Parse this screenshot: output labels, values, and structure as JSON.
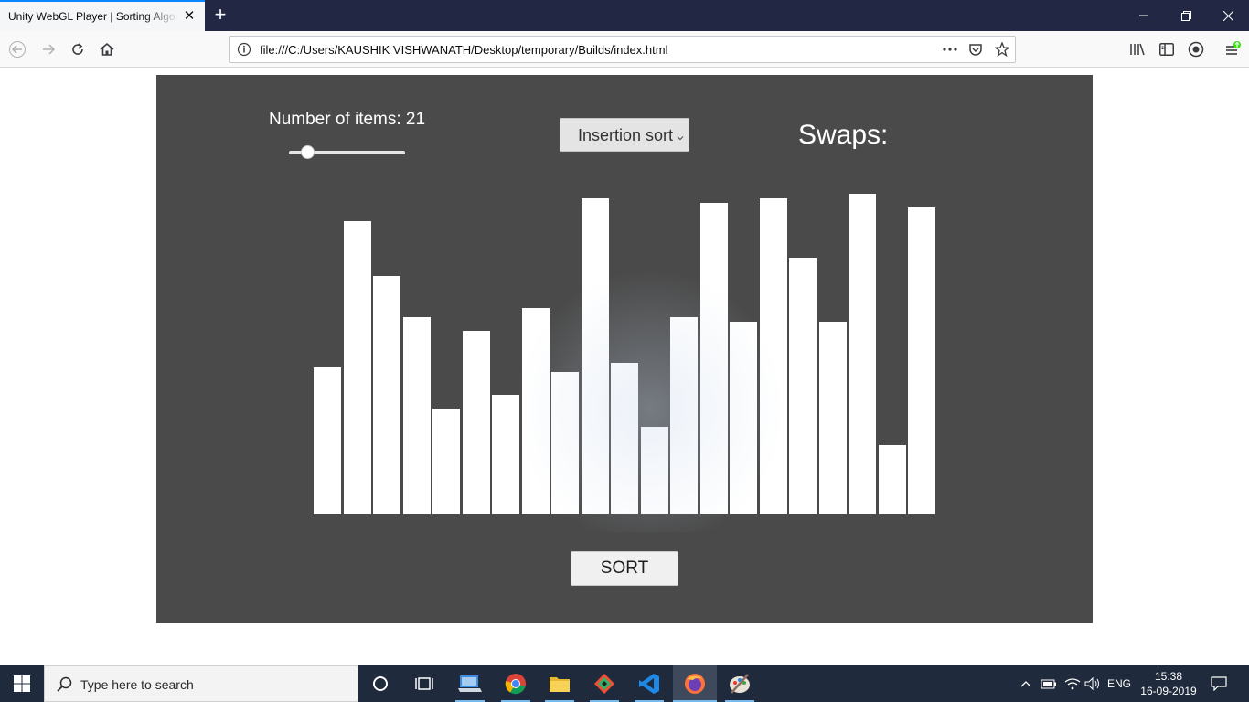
{
  "browser": {
    "tab_title": "Unity WebGL Player | Sorting Algori",
    "url": "file:///C:/Users/KAUSHIK VISHWANATH/Desktop/temporary/Builds/index.html"
  },
  "app": {
    "items_label": "Number of items: 21",
    "slider_fraction": 0.16,
    "algorithm_selected": "Insertion sort",
    "swaps_label": "Swaps:",
    "sort_button": "SORT",
    "bar_heights": [
      160,
      320,
      260,
      215,
      115,
      200,
      130,
      225,
      155,
      345,
      165,
      95,
      215,
      340,
      210,
      345,
      280,
      210,
      350,
      75,
      335
    ],
    "bar_scale_max": 350
  },
  "taskbar": {
    "search_placeholder": "Type here to search",
    "language": "ENG",
    "time": "15:38",
    "date": "16-09-2019"
  },
  "colors": {
    "browser_accent": "#0a84ff",
    "canvas_bg": "#4a4a4a",
    "bar_color": "#ffffff",
    "titlebar_bg": "#222844",
    "taskbar_bg": "#1f2a3c"
  }
}
